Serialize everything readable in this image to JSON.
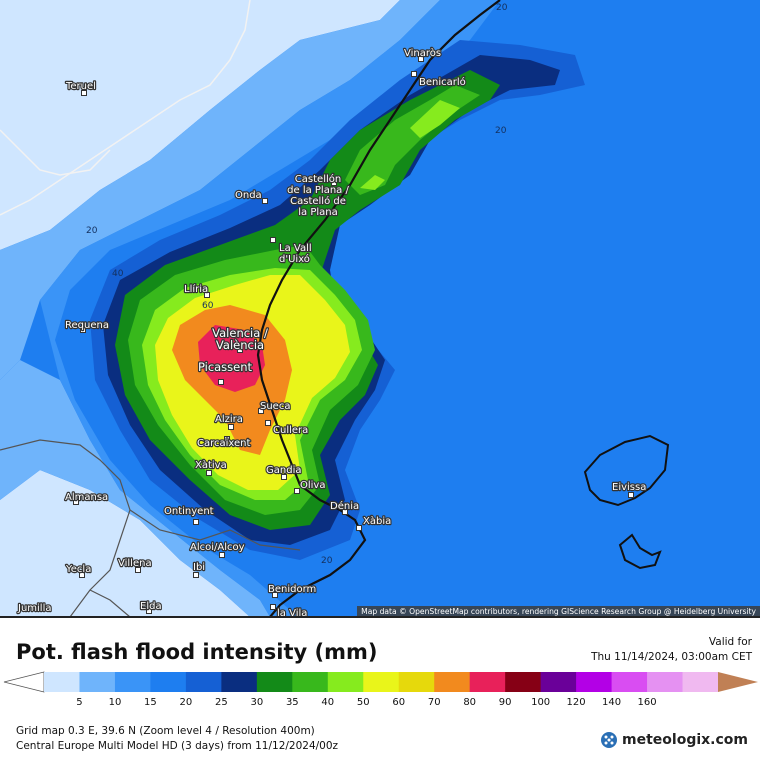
{
  "map": {
    "cities": [
      {
        "name": "Teruel"
      },
      {
        "name": "Vinaròs"
      },
      {
        "name": "Benicarló"
      },
      {
        "name": "Castellón\nde la Plana /\nCastelló de\nla Plana"
      },
      {
        "name": "Onda"
      },
      {
        "name": "La Vall\nd'Uixó"
      },
      {
        "name": "Llíria"
      },
      {
        "name": "Requena"
      },
      {
        "name": "Valencia /\nValència"
      },
      {
        "name": "Picassent"
      },
      {
        "name": "Sueca"
      },
      {
        "name": "Alzira"
      },
      {
        "name": "Cullera"
      },
      {
        "name": "Carcaixent"
      },
      {
        "name": "Xàtiva"
      },
      {
        "name": "Gandia"
      },
      {
        "name": "Oliva"
      },
      {
        "name": "Almansa"
      },
      {
        "name": "Dénia"
      },
      {
        "name": "Xàbia"
      },
      {
        "name": "Ontinyent"
      },
      {
        "name": "Alcoi/Alcoy"
      },
      {
        "name": "Villena"
      },
      {
        "name": "Yecla"
      },
      {
        "name": "Ibi"
      },
      {
        "name": "Benidorm"
      },
      {
        "name": "Jumilla"
      },
      {
        "name": "Elda"
      },
      {
        "name": "la Vila"
      },
      {
        "name": "Eivissa"
      }
    ],
    "contour_labels": [
      "20",
      "20",
      "20",
      "20",
      "40",
      "60"
    ],
    "attribution": "Map data © OpenStreetMap contributors, rendering GIScience Research Group @ Heidelberg University"
  },
  "title": "Pot. flash flood intensity (mm)",
  "valid": {
    "label": "Valid for",
    "datetime": "Thu 11/14/2024, 03:00am CET"
  },
  "legend": {
    "ticks": [
      "5",
      "10",
      "15",
      "20",
      "25",
      "30",
      "35",
      "40",
      "50",
      "60",
      "70",
      "80",
      "90",
      "100",
      "120",
      "140",
      "160"
    ],
    "colors": [
      "#cfe6ff",
      "#6fb4fb",
      "#3a94f7",
      "#1e7ef0",
      "#1560d4",
      "#0a2e80",
      "#138a18",
      "#38b81c",
      "#86eb1e",
      "#e9f51a",
      "#e6d90c",
      "#f28a1e",
      "#e8215a",
      "#860015",
      "#6a0099",
      "#b300e6",
      "#d94df2",
      "#e591f2",
      "#f0b9f0"
    ],
    "end_left_color": "#ffffff",
    "end_right_color": "#c08055"
  },
  "footer": {
    "line1": "Grid map 0.3 E, 39.6 N (Zoom level 4 / Resolution 400m)",
    "line2": "Central Europe Multi Model HD (3 days) from 11/12/2024/00z"
  },
  "brand": {
    "name": "meteologix.com",
    "icon": "meteologix-logo-icon"
  }
}
